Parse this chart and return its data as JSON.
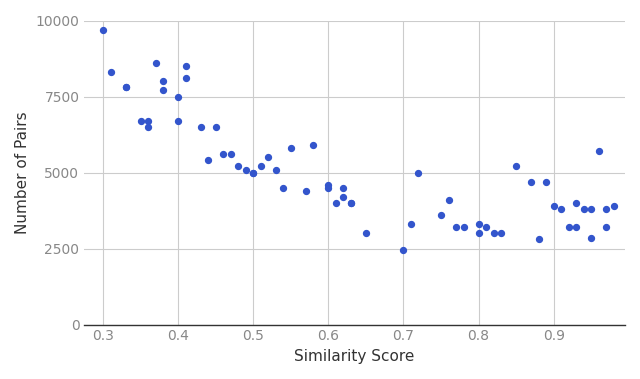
{
  "scatter_x": [
    0.3,
    0.31,
    0.33,
    0.33,
    0.35,
    0.36,
    0.36,
    0.37,
    0.38,
    0.38,
    0.4,
    0.4,
    0.41,
    0.41,
    0.43,
    0.44,
    0.45,
    0.46,
    0.47,
    0.48,
    0.49,
    0.5,
    0.5,
    0.51,
    0.52,
    0.53,
    0.54,
    0.55,
    0.57,
    0.58,
    0.6,
    0.6,
    0.61,
    0.62,
    0.62,
    0.63,
    0.63,
    0.65,
    0.7,
    0.71,
    0.72,
    0.75,
    0.76,
    0.77,
    0.78,
    0.8,
    0.8,
    0.81,
    0.82,
    0.83,
    0.85,
    0.87,
    0.88,
    0.89,
    0.9,
    0.91,
    0.92,
    0.93,
    0.93,
    0.94,
    0.95,
    0.95,
    0.96,
    0.97,
    0.97,
    0.98
  ],
  "scatter_y": [
    9700,
    8300,
    7800,
    7800,
    6700,
    6700,
    6500,
    8600,
    8000,
    7700,
    6700,
    7500,
    8500,
    8100,
    6500,
    5400,
    6500,
    5600,
    5600,
    5200,
    5100,
    5000,
    5000,
    5200,
    5500,
    5100,
    4500,
    5800,
    4400,
    5900,
    4500,
    4600,
    4000,
    4500,
    4200,
    4000,
    4000,
    3000,
    2450,
    3300,
    5000,
    3600,
    4100,
    3200,
    3200,
    3000,
    3300,
    3200,
    3000,
    3000,
    5200,
    4700,
    2800,
    4700,
    3900,
    3800,
    3200,
    4000,
    3200,
    3800,
    3800,
    2850,
    5700,
    3200,
    3800,
    3900
  ],
  "dot_color": "#3355cc",
  "dot_size": 18,
  "line_color": "#f08080",
  "line_width": 2.0,
  "xlabel": "Similarity Score",
  "ylabel": "Number of Pairs",
  "xlim": [
    0.275,
    0.995
  ],
  "ylim": [
    0,
    10000
  ],
  "xticks": [
    0.3,
    0.4,
    0.5,
    0.6,
    0.7,
    0.8,
    0.9
  ],
  "yticks": [
    0,
    2500,
    5000,
    7500,
    10000
  ],
  "tick_label_color": "#888888",
  "grid_color": "#cccccc",
  "background_color": "#ffffff",
  "figsize": [
    6.4,
    3.79
  ],
  "dpi": 100
}
